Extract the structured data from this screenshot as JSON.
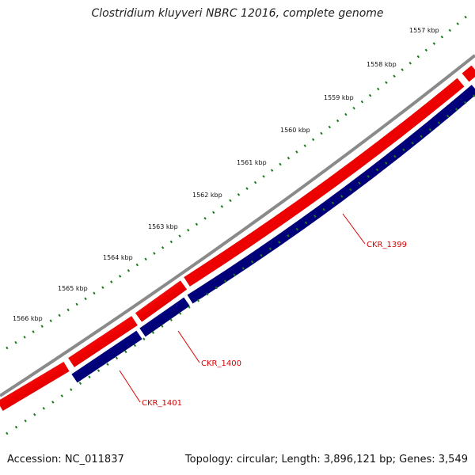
{
  "title": "Clostridium kluyveri NBRC 12016, complete genome",
  "footer": {
    "accession": "Accession: NC_011837",
    "summary": "Topology: circular; Length: 3,896,121 bp; Genes: 3,549"
  },
  "ticks": [
    "1557 kbp",
    "1558 kbp",
    "1559 kbp",
    "1560 kbp",
    "1561 kbp",
    "1562 kbp",
    "1563 kbp",
    "1564 kbp",
    "1565 kbp",
    "1566 kbp"
  ],
  "gene_labels": [
    "CKR_1399",
    "CKR_1400",
    "CKR_1401"
  ],
  "colors": {
    "backbone": "#808080",
    "forward_strand": "#ee0000",
    "reverse_strand": "#00007a",
    "gc_ticks": "#1b7a1b",
    "label": "#d90000"
  }
}
